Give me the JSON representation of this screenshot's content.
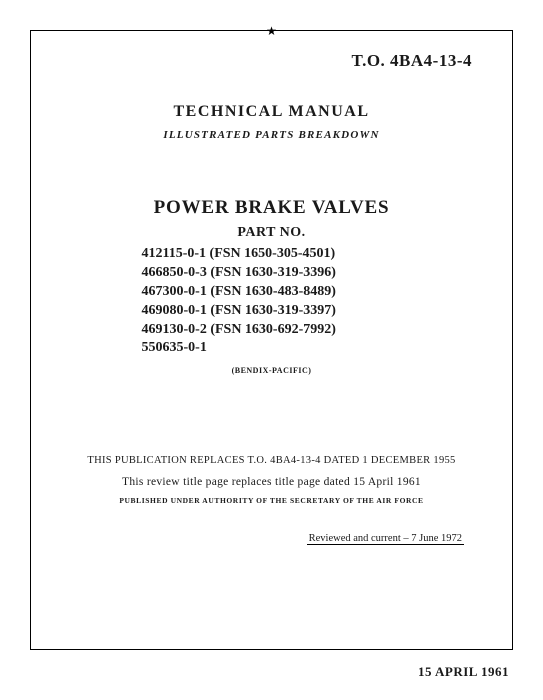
{
  "top_star": "★",
  "to_number": "T.O. 4BA4-13-4",
  "tm_heading": "TECHNICAL MANUAL",
  "ipb_heading": "ILLUSTRATED PARTS BREAKDOWN",
  "title": "POWER BRAKE VALVES",
  "partno_label": "PART NO.",
  "parts": [
    "412115-0-1 (FSN 1650-305-4501)",
    "466850-0-3 (FSN 1630-319-3396)",
    "467300-0-1 (FSN 1630-483-8489)",
    "469080-0-1 (FSN 1630-319-3397)",
    "469130-0-2 (FSN 1630-692-7992)",
    "550635-0-1"
  ],
  "manufacturer": "(BENDIX-PACIFIC)",
  "replace_line1": "THIS PUBLICATION REPLACES T.O. 4BA4-13-4 DATED 1 DECEMBER 1955",
  "replace_line2": "This review title page replaces title page dated 15 April 1961",
  "authority": "PUBLISHED UNDER AUTHORITY OF THE SECRETARY OF THE AIR FORCE",
  "reviewed": "Reviewed and current – 7 June 1972",
  "footer_date": "15 APRIL 1961"
}
